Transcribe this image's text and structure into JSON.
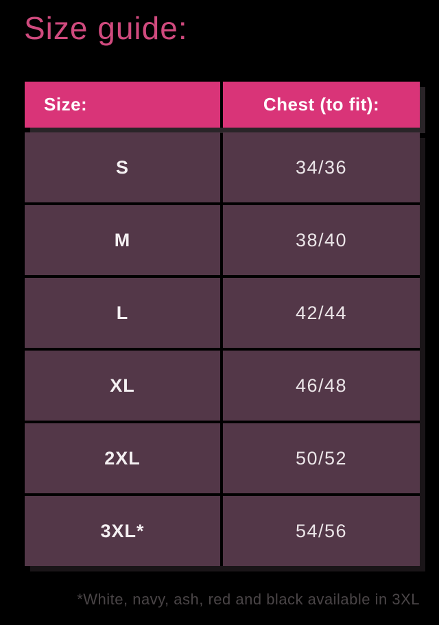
{
  "page": {
    "title": "Size guide:",
    "footnote": "*White, navy, ash, red and black available in 3XL"
  },
  "table": {
    "headers": {
      "size": "Size:",
      "chest": "Chest (to fit):"
    },
    "rows": [
      {
        "size": "S",
        "chest": "34/36"
      },
      {
        "size": "M",
        "chest": "38/40"
      },
      {
        "size": "L",
        "chest": "42/44"
      },
      {
        "size": "XL",
        "chest": "46/48"
      },
      {
        "size": "2XL",
        "chest": "50/52"
      },
      {
        "size": "3XL*",
        "chest": "54/56"
      }
    ]
  },
  "colors": {
    "background": "#000000",
    "title_pink": "#D04A7E",
    "header_bg_pink": "#D93478",
    "header_text": "#FFFFFF",
    "cell_bg_plum": "#533748",
    "size_text": "#F4F0F2",
    "chest_text": "#EBE5E8",
    "footnote_gray": "#4A4547"
  }
}
